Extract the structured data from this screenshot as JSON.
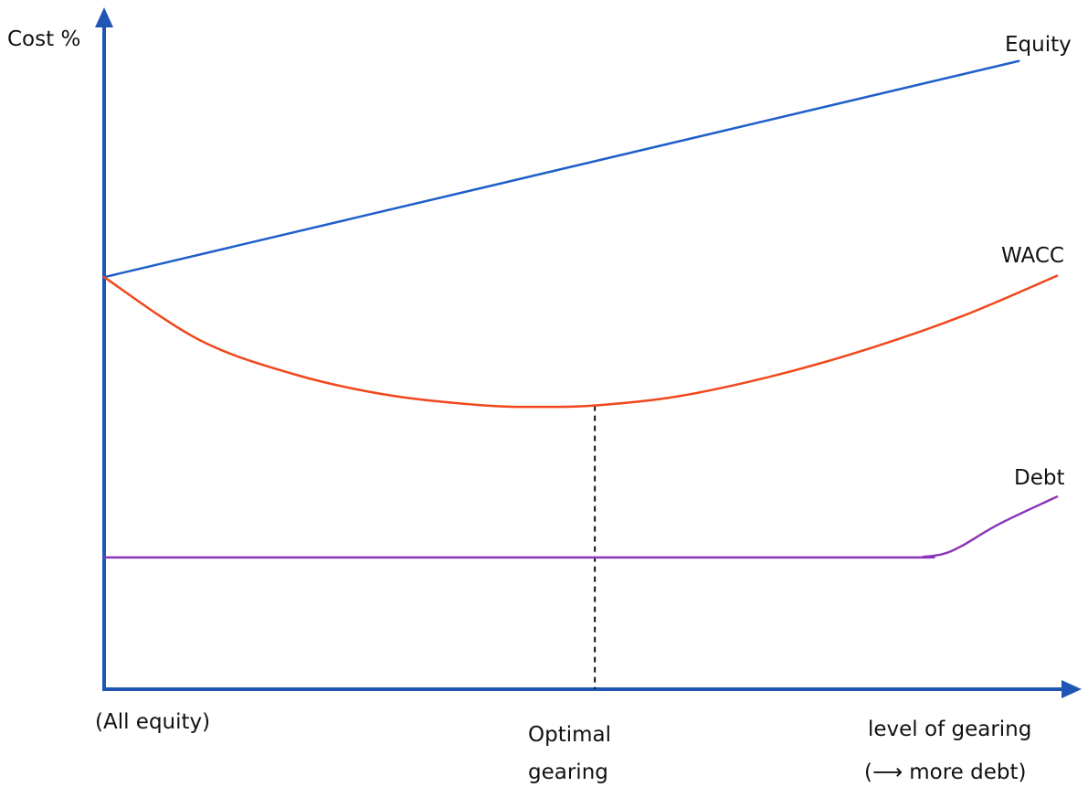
{
  "chart_data": {
    "type": "line",
    "title": "",
    "ylabel": "Cost %",
    "xlabel": "level of gearing",
    "xlabel_note": "(⟶ more debt)",
    "x_start_label": "(All equity)",
    "optimal_label_line1": "Optimal",
    "optimal_label_line2": "gearing",
    "xlim": [
      0,
      100
    ],
    "ylim": [
      0,
      100
    ],
    "grid": false,
    "legend": "inline labels at line ends",
    "optimal_x": 51.5,
    "series": [
      {
        "name": "Equity",
        "color": "#1f5fc9",
        "x": [
          0,
          96
        ],
        "y": [
          61,
          93
        ]
      },
      {
        "name": "WACC",
        "color": "#f0471c",
        "x": [
          0,
          10,
          20,
          30,
          40,
          46,
          51.5,
          60,
          70,
          80,
          90,
          100
        ],
        "y": [
          61,
          51.7,
          46.6,
          43.5,
          42.0,
          41.8,
          42.0,
          43.3,
          46.3,
          50.3,
          55.2,
          61.2
        ]
      },
      {
        "name": "Debt",
        "color": "#8c35b8",
        "x": [
          0,
          50,
          84,
          86,
          88,
          90,
          94,
          100
        ],
        "y": [
          19.5,
          19.5,
          19.5,
          19.6,
          20.0,
          21.2,
          24.5,
          28.5
        ]
      }
    ]
  },
  "colors": {
    "axis": "#1f56b4",
    "dash": "#111111"
  }
}
